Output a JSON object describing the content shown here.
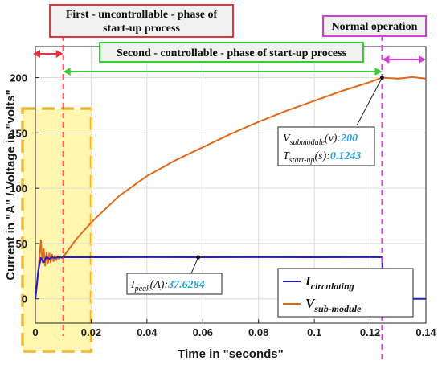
{
  "chart_data": {
    "type": "line",
    "xlabel": "Time in \"seconds\"",
    "ylabel": "Current in \"A\" / Voltage in \"volts\"",
    "xlim": [
      0,
      0.14
    ],
    "ylim": [
      -22,
      228
    ],
    "x_ticks": [
      0,
      0.02,
      0.04,
      0.06,
      0.08,
      0.1,
      0.12,
      0.14
    ],
    "x_tick_labels": [
      "0",
      "0.02",
      "0.04",
      "0.06",
      "0.08",
      "0.1",
      "0.12",
      "0.14"
    ],
    "y_ticks": [
      0,
      50,
      100,
      150,
      200
    ],
    "y_tick_labels": [
      "0",
      "50",
      "100",
      "150",
      "200"
    ],
    "grid": true,
    "series": [
      {
        "name_main": "I",
        "name_sub": "circulating",
        "color": "#1f1fd6",
        "x": [
          0,
          0.001,
          0.002,
          0.003,
          0.004,
          0.005,
          0.006,
          0.007,
          0.008,
          0.009,
          0.01,
          0.02,
          0.04,
          0.06,
          0.08,
          0.1,
          0.12,
          0.1242,
          0.1244,
          0.1246,
          0.125,
          0.126,
          0.127,
          0.128,
          0.13,
          0.135,
          0.14
        ],
        "y": [
          0,
          25,
          37,
          33,
          38,
          36,
          37.5,
          37,
          37.6,
          37.4,
          37.6,
          37.6,
          37.7,
          37.6,
          37.7,
          37.6,
          37.7,
          37.6,
          30,
          15,
          8,
          3,
          0.5,
          -0.5,
          -0.3,
          0,
          0
        ]
      },
      {
        "name_main": "V",
        "name_sub": "sub-module",
        "color": "#e06a1c",
        "x": [
          0,
          0.0005,
          0.001,
          0.0015,
          0.002,
          0.0025,
          0.003,
          0.0035,
          0.004,
          0.0045,
          0.005,
          0.0055,
          0.006,
          0.0065,
          0.007,
          0.0075,
          0.008,
          0.0085,
          0.009,
          0.0095,
          0.01,
          0.015,
          0.02,
          0.03,
          0.04,
          0.05,
          0.06,
          0.07,
          0.08,
          0.09,
          0.1,
          0.11,
          0.12,
          0.1243,
          0.13,
          0.135,
          0.14
        ],
        "y": [
          0,
          10,
          25,
          38,
          53,
          33,
          45,
          30,
          42,
          32,
          41,
          33,
          40,
          34,
          39,
          35,
          38.5,
          36,
          38,
          37,
          38,
          55,
          69,
          93,
          111,
          125,
          137,
          149,
          160,
          170,
          179,
          188,
          196,
          200,
          199,
          200.5,
          199
        ]
      }
    ],
    "phases": [
      {
        "label_line1": "First - uncontrollable - phase of",
        "label_line2": "start-up process"
      },
      {
        "label": "Second - controllable - phase of start-up process"
      },
      {
        "label": "Normal operation"
      }
    ],
    "phase_boundaries_x": [
      0.01,
      0.1243
    ],
    "highlight_region_x": [
      -0.005,
      0.02
    ],
    "annotations": [
      {
        "x": 0.1243,
        "y": 200,
        "line1_main": "V",
        "line1_sub": "submodule",
        "line1_unit": "(v):",
        "line1_value": "200",
        "line2_main": "T",
        "line2_sub": "start-up",
        "line2_unit": "(s):",
        "line2_value": "0.1243"
      },
      {
        "x": 0.0584,
        "y": 37.6,
        "main": "I",
        "sub": "peak",
        "unit": "(A):",
        "value": "37.6284"
      }
    ],
    "legend_position": "bottom-right",
    "colors": {
      "phase1": "#e8323c",
      "phase2": "#36cc36",
      "phase3": "#d63cd6",
      "highlight_fill": "#fff6b0",
      "highlight_border": "#eab83a"
    }
  }
}
